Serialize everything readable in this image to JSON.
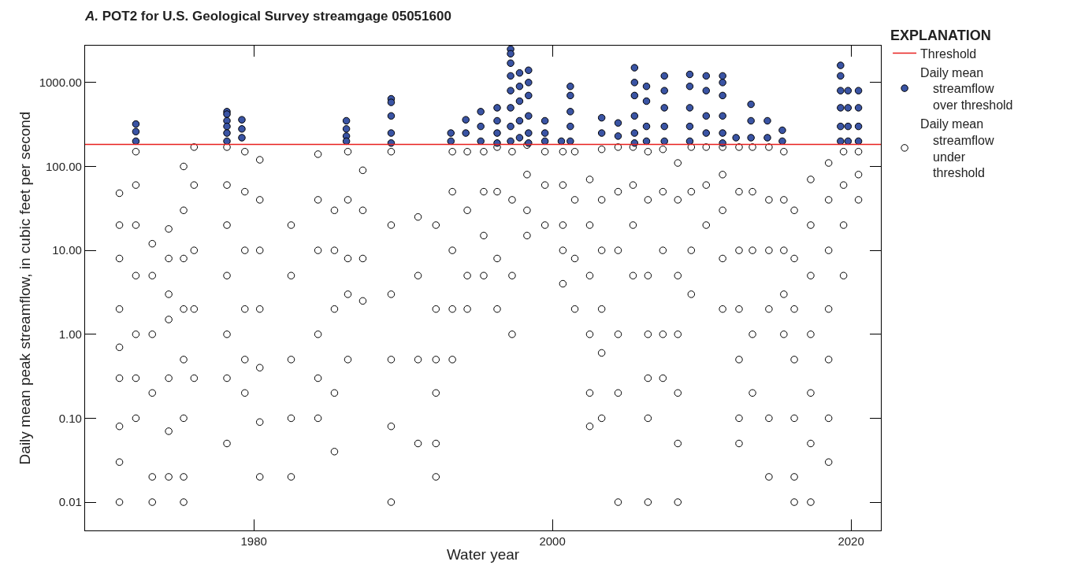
{
  "chart_data": {
    "type": "scatter",
    "title": "A. POT2 for U.S. Geological Survey streamgage 05051600",
    "xlabel": "Water year",
    "ylabel": "Daily mean peak streamflow, in cubic feet per second",
    "legend_title": "EXPLANATION",
    "legend": "right",
    "grid": false,
    "log": "y",
    "marker": "circle",
    "xlim": [
      1968.7,
      2022.0
    ],
    "xticks": [
      1980,
      2000,
      2020
    ],
    "ylim": [
      0.0046,
      2750
    ],
    "yticks": [
      0.01,
      {
        "value": 0.1,
        "label": "0.10"
      },
      {
        "value": 1,
        "label": "1.00"
      },
      {
        "value": 10,
        "label": "10.00"
      },
      {
        "value": 100,
        "label": "100.00"
      },
      {
        "value": 1000,
        "label": "1000.00"
      }
    ],
    "ref_lines": [
      {
        "axis": "y",
        "value": 183,
        "label": "Threshold",
        "color": "#e8201e",
        "line_style": "solid"
      }
    ],
    "series": [
      {
        "name": "Daily mean streamflow over threshold",
        "color": "#3a54a4",
        "x": [
          1972.1,
          1972.1,
          1972.1,
          1978.2,
          1978.2,
          1978.2,
          1978.2,
          1978.2,
          1978.2,
          1979.2,
          1979.2,
          1979.2,
          1986.2,
          1986.2,
          1986.2,
          1986.2,
          1989.2,
          1989.2,
          1989.2,
          1989.2,
          1989.2,
          1993.2,
          1993.2,
          1994.2,
          1994.2,
          1995.2,
          1995.2,
          1995.2,
          1996.3,
          1996.3,
          1996.3,
          1996.3,
          1997.2,
          1997.2,
          1997.2,
          1997.2,
          1997.2,
          1997.2,
          1997.2,
          1997.2,
          1997.8,
          1997.8,
          1997.8,
          1997.8,
          1997.8,
          1998.4,
          1998.4,
          1998.4,
          1998.4,
          1998.4,
          1998.4,
          1999.5,
          1999.5,
          1999.5,
          2000.6,
          2001.2,
          2001.2,
          2001.2,
          2001.2,
          2001.2,
          2003.3,
          2003.3,
          2004.4,
          2004.4,
          2005.5,
          2005.5,
          2005.5,
          2005.5,
          2005.5,
          2005.5,
          2006.3,
          2006.3,
          2006.3,
          2006.3,
          2007.5,
          2007.5,
          2007.5,
          2007.5,
          2007.5,
          2009.2,
          2009.2,
          2009.2,
          2009.2,
          2009.2,
          2010.3,
          2010.3,
          2010.3,
          2010.3,
          2011.4,
          2011.4,
          2011.4,
          2011.4,
          2011.4,
          2011.4,
          2012.3,
          2013.3,
          2013.3,
          2013.3,
          2014.4,
          2014.4,
          2015.4,
          2015.4,
          2019.3,
          2019.3,
          2019.3,
          2019.3,
          2019.3,
          2019.3,
          2019.8,
          2019.8,
          2019.8,
          2019.8,
          2020.5,
          2020.5,
          2020.5,
          2020.5
        ],
        "values": [
          320,
          260,
          200,
          450,
          420,
          350,
          300,
          250,
          200,
          360,
          280,
          220,
          350,
          280,
          230,
          200,
          640,
          580,
          400,
          250,
          190,
          250,
          200,
          360,
          250,
          450,
          300,
          200,
          500,
          350,
          250,
          190,
          2500,
          2200,
          1700,
          1200,
          800,
          500,
          300,
          200,
          1300,
          900,
          600,
          350,
          220,
          1400,
          1000,
          700,
          400,
          250,
          190,
          350,
          250,
          200,
          200,
          900,
          700,
          450,
          300,
          200,
          380,
          250,
          330,
          230,
          1500,
          1000,
          700,
          400,
          250,
          190,
          900,
          600,
          300,
          200,
          1200,
          800,
          500,
          300,
          200,
          1250,
          900,
          500,
          300,
          200,
          1200,
          800,
          400,
          250,
          1200,
          1000,
          700,
          400,
          250,
          190,
          220,
          550,
          350,
          220,
          350,
          220,
          270,
          200,
          1600,
          1200,
          800,
          500,
          300,
          200,
          800,
          500,
          300,
          200,
          800,
          500,
          300,
          200
        ]
      },
      {
        "name": "Daily mean streamflow under threshold",
        "color": "#ffffff",
        "x": [
          1971.0,
          1971.0,
          1971.0,
          1971.0,
          1971.0,
          1971.0,
          1971.0,
          1971.0,
          1971.0,
          1972.1,
          1972.1,
          1972.1,
          1972.1,
          1972.1,
          1972.1,
          1972.1,
          1973.2,
          1973.2,
          1973.2,
          1973.2,
          1973.2,
          1973.2,
          1974.3,
          1974.3,
          1974.3,
          1974.3,
          1974.3,
          1974.3,
          1974.3,
          1975.3,
          1975.3,
          1975.3,
          1975.3,
          1975.3,
          1975.3,
          1975.3,
          1975.3,
          1976.0,
          1976.0,
          1976.0,
          1976.0,
          1976.0,
          1978.2,
          1978.2,
          1978.2,
          1978.2,
          1978.2,
          1978.2,
          1978.2,
          1979.4,
          1979.4,
          1979.4,
          1979.4,
          1979.4,
          1979.4,
          1980.4,
          1980.4,
          1980.4,
          1980.4,
          1980.4,
          1980.4,
          1980.4,
          1982.5,
          1982.5,
          1982.5,
          1982.5,
          1982.5,
          1984.3,
          1984.3,
          1984.3,
          1984.3,
          1984.3,
          1984.3,
          1985.4,
          1985.4,
          1985.4,
          1985.4,
          1985.4,
          1986.3,
          1986.3,
          1986.3,
          1986.3,
          1986.3,
          1987.3,
          1987.3,
          1987.3,
          1987.3,
          1989.2,
          1989.2,
          1989.2,
          1989.2,
          1989.2,
          1989.2,
          1991.0,
          1991.0,
          1991.0,
          1991.0,
          1992.2,
          1992.2,
          1992.2,
          1992.2,
          1992.2,
          1992.2,
          1993.3,
          1993.3,
          1993.3,
          1993.3,
          1993.3,
          1994.3,
          1994.3,
          1994.3,
          1994.3,
          1995.4,
          1995.4,
          1995.4,
          1995.4,
          1996.3,
          1996.3,
          1996.3,
          1996.3,
          1997.3,
          1997.3,
          1997.3,
          1997.3,
          1998.3,
          1998.3,
          1998.3,
          1998.3,
          1999.5,
          1999.5,
          1999.5,
          2000.7,
          2000.7,
          2000.7,
          2000.7,
          2000.7,
          2001.5,
          2001.5,
          2001.5,
          2001.5,
          2002.5,
          2002.5,
          2002.5,
          2002.5,
          2002.5,
          2002.5,
          2003.3,
          2003.3,
          2003.3,
          2003.3,
          2003.3,
          2003.3,
          2004.4,
          2004.4,
          2004.4,
          2004.4,
          2004.4,
          2004.4,
          2005.4,
          2005.4,
          2005.4,
          2005.4,
          2006.4,
          2006.4,
          2006.4,
          2006.4,
          2006.4,
          2006.4,
          2006.4,
          2007.4,
          2007.4,
          2007.4,
          2007.4,
          2007.4,
          2008.4,
          2008.4,
          2008.4,
          2008.4,
          2008.4,
          2008.4,
          2008.4,
          2009.3,
          2009.3,
          2009.3,
          2009.3,
          2010.3,
          2010.3,
          2010.3,
          2011.4,
          2011.4,
          2011.4,
          2011.4,
          2011.4,
          2012.5,
          2012.5,
          2012.5,
          2012.5,
          2012.5,
          2012.5,
          2012.5,
          2013.4,
          2013.4,
          2013.4,
          2013.4,
          2013.4,
          2014.5,
          2014.5,
          2014.5,
          2014.5,
          2014.5,
          2014.5,
          2015.5,
          2015.5,
          2015.5,
          2015.5,
          2015.5,
          2016.2,
          2016.2,
          2016.2,
          2016.2,
          2016.2,
          2016.2,
          2016.2,
          2017.3,
          2017.3,
          2017.3,
          2017.3,
          2017.3,
          2017.3,
          2017.3,
          2018.5,
          2018.5,
          2018.5,
          2018.5,
          2018.5,
          2018.5,
          2018.5,
          2019.5,
          2019.5,
          2019.5,
          2019.5,
          2020.5,
          2020.5,
          2020.5
        ],
        "values": [
          48,
          20,
          8,
          2,
          0.7,
          0.3,
          0.08,
          0.03,
          0.01,
          150,
          60,
          20,
          5,
          1,
          0.3,
          0.1,
          12,
          5,
          1,
          0.2,
          0.02,
          0.01,
          18,
          8,
          3,
          1.5,
          0.3,
          0.07,
          0.02,
          100,
          30,
          8,
          2,
          0.5,
          0.1,
          0.02,
          0.01,
          170,
          60,
          10,
          2,
          0.3,
          170,
          60,
          20,
          5,
          1,
          0.3,
          0.05,
          150,
          50,
          10,
          2,
          0.5,
          0.2,
          120,
          40,
          10,
          2,
          0.4,
          0.09,
          0.02,
          20,
          5,
          0.5,
          0.1,
          0.02,
          140,
          40,
          10,
          1,
          0.3,
          0.1,
          30,
          10,
          2,
          0.2,
          0.04,
          150,
          40,
          8,
          3,
          0.5,
          90,
          30,
          8,
          2.5,
          150,
          20,
          3,
          0.5,
          0.08,
          0.01,
          25,
          5,
          0.5,
          0.05,
          20,
          2,
          0.5,
          0.2,
          0.05,
          0.02,
          150,
          50,
          10,
          2,
          0.5,
          150,
          30,
          5,
          2,
          150,
          50,
          15,
          5,
          170,
          50,
          8,
          2,
          150,
          40,
          5,
          1,
          180,
          80,
          30,
          15,
          150,
          60,
          20,
          150,
          60,
          20,
          10,
          4,
          150,
          40,
          8,
          2,
          70,
          20,
          5,
          1,
          0.2,
          0.08,
          160,
          40,
          10,
          2,
          0.6,
          0.1,
          170,
          50,
          10,
          1,
          0.2,
          0.01,
          170,
          60,
          20,
          5,
          150,
          40,
          5,
          1,
          0.3,
          0.1,
          0.01,
          160,
          50,
          10,
          1,
          0.3,
          110,
          40,
          5,
          1,
          0.2,
          0.05,
          0.01,
          170,
          50,
          10,
          3,
          170,
          60,
          20,
          170,
          80,
          30,
          8,
          2,
          170,
          50,
          10,
          2,
          0.5,
          0.1,
          0.05,
          170,
          50,
          10,
          1,
          0.2,
          170,
          40,
          10,
          2,
          0.1,
          0.02,
          150,
          40,
          10,
          3,
          1,
          30,
          8,
          2,
          0.5,
          0.1,
          0.02,
          0.01,
          70,
          20,
          5,
          1,
          0.2,
          0.05,
          0.01,
          110,
          40,
          10,
          2,
          0.5,
          0.1,
          0.03,
          150,
          60,
          20,
          5,
          150,
          80,
          40
        ]
      }
    ]
  }
}
